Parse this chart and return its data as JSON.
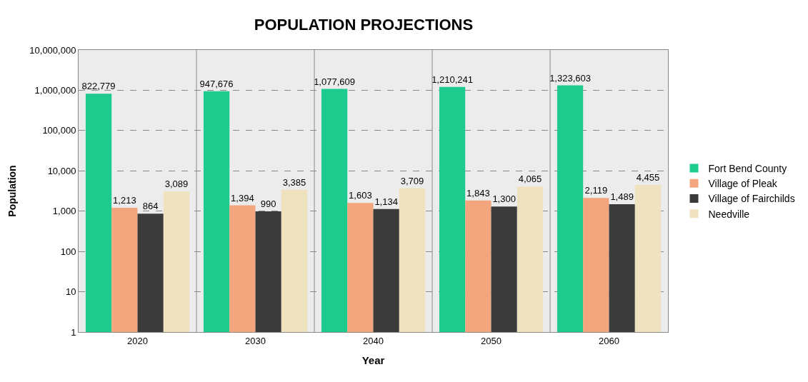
{
  "chart_data": {
    "type": "bar",
    "title": "POPULATION PROJECTIONS",
    "xlabel": "Year",
    "ylabel": "Population",
    "categories": [
      "2020",
      "2030",
      "2040",
      "2050",
      "2060"
    ],
    "series": [
      {
        "name": "Fort Bend County",
        "color": "#1ecb8e",
        "values": [
          822779,
          947676,
          1077609,
          1210241,
          1323603
        ],
        "value_labels": [
          "822,779",
          "947,676",
          "1,077,609",
          "1,210,241",
          "1,323,603"
        ]
      },
      {
        "name": "Village of Pleak",
        "color": "#f3a57d",
        "values": [
          1213,
          1394,
          1603,
          1843,
          2119
        ],
        "value_labels": [
          "1,213",
          "1,394",
          "1,603",
          "1,843",
          "2,119"
        ]
      },
      {
        "name": "Village of Fairchilds",
        "color": "#3b3b3b",
        "values": [
          864,
          990,
          1134,
          1300,
          1489
        ],
        "value_labels": [
          "864",
          "990",
          "1,134",
          "1,300",
          "1,489"
        ]
      },
      {
        "name": "Needville",
        "color": "#efe2bf",
        "values": [
          3089,
          3385,
          3709,
          4065,
          4455
        ],
        "value_labels": [
          "3,089",
          "3,385",
          "3,709",
          "4,065",
          "4,455"
        ]
      }
    ],
    "log": "y",
    "ylim": [
      1,
      10000000
    ],
    "yticks": [
      {
        "value": 1,
        "label": "1"
      },
      {
        "value": 10,
        "label": "10"
      },
      {
        "value": 100,
        "label": "100"
      },
      {
        "value": 1000,
        "label": "1,000"
      },
      {
        "value": 10000,
        "label": "10,000"
      },
      {
        "value": 100000,
        "label": "100,000"
      },
      {
        "value": 1000000,
        "label": "1,000,000"
      },
      {
        "value": 10000000,
        "label": "10,000,000"
      }
    ],
    "grid": true,
    "legend": "right"
  }
}
